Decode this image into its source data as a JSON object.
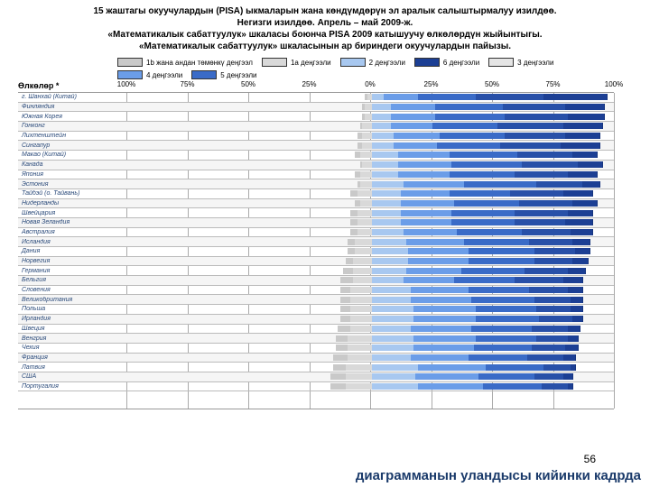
{
  "title": {
    "l1": "15 жаштагы окуучулардын (PISA) ыкмаларын жана көндүмдөрүн эл аралык салыштырмалуу изилдөө.",
    "l2": "Негизги изилдөө. Апрель – май 2009-ж.",
    "l3": "«Математикалык сабаттуулук» шкаласы боюнча PISA 2009 катышуучу өлкөлөрдүн жыйынтыгы.",
    "l4": "«Математикалык сабаттуулук» шкаласынын ар бириндеги окуучулардын пайызы."
  },
  "sub": "Өлкөлөр *",
  "legend": [
    {
      "c": "#c9c9c9",
      "t": "1b жана андан төмөнкү деңгээл"
    },
    {
      "c": "#d9d9d9",
      "t": "1a деңгээли"
    },
    {
      "c": "#a8c8f0",
      "t": "2 деңгээли"
    },
    {
      "c": "#1c3f94",
      "t": "6 деңгээли"
    },
    {
      "c": "#e5e5e5",
      "t": "3 деңгээли"
    },
    {
      "c": "#6b9de8",
      "t": "4 деңгээли"
    },
    {
      "c": "#3a6bc7",
      "t": "5 деңгээли"
    }
  ],
  "axis": [
    "100%",
    "75%",
    "50%",
    "25%",
    "0%",
    "25%",
    "50%",
    "75%",
    "100%"
  ],
  "colors": {
    "b": "#c9c9c9",
    "a": "#d9d9d9",
    "l2": "#a8c8f0",
    "l3": "#6b9de8",
    "l4": "#3a6bc7",
    "l5": "#2850a8",
    "l6": "#1c3f94"
  },
  "countries": [
    {
      "n": "г. Шанхай (Китай)",
      "v": [
        1,
        2,
        5,
        14,
        24,
        28,
        26
      ]
    },
    {
      "n": "Финляндия",
      "v": [
        1,
        3,
        8,
        18,
        28,
        26,
        16
      ]
    },
    {
      "n": "Южная Корея",
      "v": [
        1,
        3,
        8,
        18,
        29,
        26,
        15
      ]
    },
    {
      "n": "Гонконг",
      "v": [
        1,
        4,
        8,
        17,
        27,
        27,
        16
      ]
    },
    {
      "n": "Лихтенштейн",
      "v": [
        2,
        4,
        9,
        19,
        27,
        25,
        14
      ]
    },
    {
      "n": "Сингапур",
      "v": [
        2,
        4,
        9,
        18,
        26,
        25,
        16
      ]
    },
    {
      "n": "Макао (Китай)",
      "v": [
        2,
        5,
        11,
        21,
        28,
        23,
        10
      ]
    },
    {
      "n": "Канада",
      "v": [
        1,
        4,
        11,
        22,
        29,
        23,
        10
      ]
    },
    {
      "n": "Япония",
      "v": [
        2,
        5,
        11,
        21,
        27,
        22,
        12
      ]
    },
    {
      "n": "Эстония",
      "v": [
        1,
        5,
        13,
        25,
        30,
        19,
        7
      ]
    },
    {
      "n": "Тайбэй (о. Тайвань)",
      "v": [
        3,
        6,
        12,
        20,
        25,
        22,
        12
      ]
    },
    {
      "n": "Нидерланды",
      "v": [
        2,
        5,
        12,
        22,
        27,
        22,
        10
      ]
    },
    {
      "n": "Швейцария",
      "v": [
        3,
        6,
        12,
        21,
        26,
        22,
        10
      ]
    },
    {
      "n": "Новая Зеландия",
      "v": [
        3,
        6,
        12,
        21,
        26,
        21,
        11
      ]
    },
    {
      "n": "Австралия",
      "v": [
        3,
        6,
        13,
        22,
        27,
        20,
        9
      ]
    },
    {
      "n": "Исландия",
      "v": [
        3,
        7,
        14,
        24,
        27,
        18,
        7
      ]
    },
    {
      "n": "Дания",
      "v": [
        3,
        7,
        15,
        25,
        27,
        17,
        6
      ]
    },
    {
      "n": "Норвегия",
      "v": [
        3,
        8,
        15,
        25,
        27,
        16,
        6
      ]
    },
    {
      "n": "Германия",
      "v": [
        4,
        8,
        14,
        23,
        26,
        18,
        7
      ]
    },
    {
      "n": "Бельгия",
      "v": [
        5,
        8,
        13,
        21,
        25,
        20,
        8
      ]
    },
    {
      "n": "Словения",
      "v": [
        4,
        9,
        16,
        24,
        25,
        16,
        6
      ]
    },
    {
      "n": "Великобритания",
      "v": [
        4,
        9,
        16,
        25,
        26,
        15,
        5
      ]
    },
    {
      "n": "Польша",
      "v": [
        4,
        9,
        17,
        26,
        25,
        14,
        5
      ]
    },
    {
      "n": "Ирландия",
      "v": [
        4,
        9,
        17,
        26,
        26,
        14,
        4
      ]
    },
    {
      "n": "Швеция",
      "v": [
        5,
        9,
        16,
        25,
        25,
        15,
        5
      ]
    },
    {
      "n": "Венгрия",
      "v": [
        5,
        10,
        17,
        26,
        25,
        13,
        4
      ]
    },
    {
      "n": "Чехия",
      "v": [
        5,
        10,
        17,
        25,
        24,
        14,
        5
      ]
    },
    {
      "n": "Франция",
      "v": [
        6,
        10,
        16,
        24,
        24,
        15,
        5
      ]
    },
    {
      "n": "Латвия",
      "v": [
        5,
        11,
        19,
        28,
        24,
        11,
        2
      ]
    },
    {
      "n": "США",
      "v": [
        6,
        11,
        18,
        26,
        23,
        12,
        4
      ]
    },
    {
      "n": "Португалия",
      "v": [
        6,
        11,
        19,
        27,
        24,
        11,
        2
      ]
    }
  ],
  "page_num": "56",
  "note": "диаграмманын уландысы кийинки кадрда"
}
